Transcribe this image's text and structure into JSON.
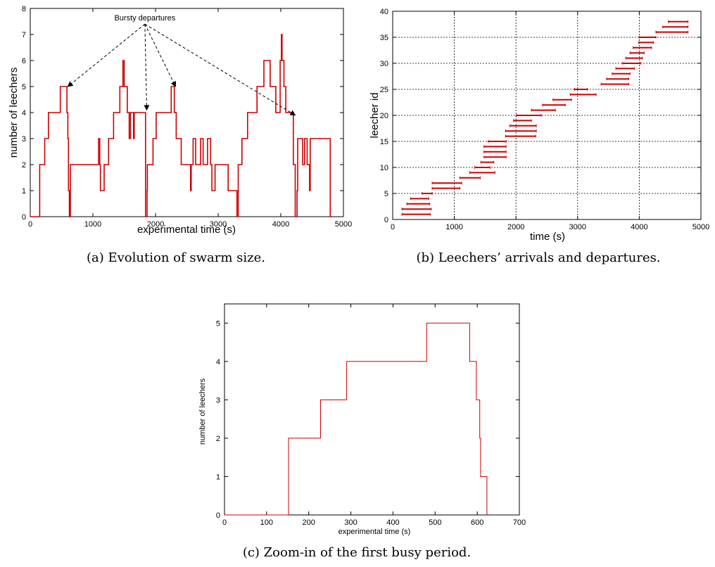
{
  "chart_data": [
    {
      "id": "a",
      "type": "line",
      "caption": "(a) Evolution of swarm size.",
      "xlabel": "experimental time (s)",
      "ylabel": "number of leechers",
      "xlim": [
        0,
        5000
      ],
      "ylim": [
        0,
        8
      ],
      "xticks": [
        0,
        1000,
        2000,
        3000,
        4000,
        5000
      ],
      "yticks": [
        0,
        1,
        2,
        3,
        4,
        5,
        6,
        7,
        8
      ],
      "grid": false,
      "color": "#cc0000",
      "annotation": {
        "text": "Bursty departures",
        "anchor": [
          1830,
          7.4
        ],
        "targets": [
          [
            600,
            5
          ],
          [
            1860,
            4.1
          ],
          [
            2320,
            5
          ],
          [
            4230,
            3.9
          ]
        ]
      },
      "series": [
        {
          "points": [
            [
              0,
              0
            ],
            [
              150,
              0
            ],
            [
              150,
              2
            ],
            [
              230,
              2
            ],
            [
              230,
              3
            ],
            [
              290,
              3
            ],
            [
              290,
              4
            ],
            [
              480,
              4
            ],
            [
              480,
              5
            ],
            [
              585,
              5
            ],
            [
              585,
              4
            ],
            [
              600,
              4
            ],
            [
              600,
              3
            ],
            [
              610,
              3
            ],
            [
              610,
              1
            ],
            [
              625,
              1
            ],
            [
              625,
              0
            ],
            [
              640,
              0
            ],
            [
              640,
              2
            ],
            [
              1090,
              2
            ],
            [
              1090,
              3
            ],
            [
              1110,
              3
            ],
            [
              1110,
              2
            ],
            [
              1120,
              2
            ],
            [
              1120,
              1
            ],
            [
              1180,
              1
            ],
            [
              1180,
              2
            ],
            [
              1250,
              2
            ],
            [
              1250,
              3
            ],
            [
              1330,
              3
            ],
            [
              1330,
              4
            ],
            [
              1430,
              4
            ],
            [
              1430,
              5
            ],
            [
              1480,
              5
            ],
            [
              1480,
              6
            ],
            [
              1500,
              6
            ],
            [
              1500,
              5
            ],
            [
              1550,
              5
            ],
            [
              1550,
              4
            ],
            [
              1580,
              4
            ],
            [
              1580,
              3
            ],
            [
              1600,
              3
            ],
            [
              1600,
              4
            ],
            [
              1650,
              4
            ],
            [
              1650,
              3
            ],
            [
              1660,
              3
            ],
            [
              1660,
              4
            ],
            [
              1840,
              4
            ],
            [
              1840,
              0
            ],
            [
              1865,
              0
            ],
            [
              1865,
              1
            ],
            [
              1870,
              1
            ],
            [
              1870,
              2
            ],
            [
              1960,
              2
            ],
            [
              1960,
              3
            ],
            [
              2010,
              3
            ],
            [
              2010,
              4
            ],
            [
              2250,
              4
            ],
            [
              2250,
              5
            ],
            [
              2300,
              5
            ],
            [
              2300,
              4
            ],
            [
              2330,
              4
            ],
            [
              2330,
              3
            ],
            [
              2410,
              3
            ],
            [
              2410,
              2
            ],
            [
              2560,
              2
            ],
            [
              2560,
              1
            ],
            [
              2570,
              1
            ],
            [
              2570,
              2
            ],
            [
              2600,
              2
            ],
            [
              2600,
              3
            ],
            [
              2640,
              3
            ],
            [
              2640,
              2
            ],
            [
              2720,
              2
            ],
            [
              2720,
              3
            ],
            [
              2760,
              3
            ],
            [
              2760,
              2
            ],
            [
              2830,
              2
            ],
            [
              2830,
              3
            ],
            [
              2880,
              3
            ],
            [
              2880,
              2
            ],
            [
              2900,
              2
            ],
            [
              2900,
              1
            ],
            [
              2950,
              1
            ],
            [
              2950,
              2
            ],
            [
              3160,
              2
            ],
            [
              3160,
              1
            ],
            [
              3300,
              1
            ],
            [
              3300,
              0
            ],
            [
              3320,
              0
            ],
            [
              3320,
              2
            ],
            [
              3380,
              2
            ],
            [
              3380,
              3
            ],
            [
              3470,
              3
            ],
            [
              3470,
              4
            ],
            [
              3620,
              4
            ],
            [
              3620,
              5
            ],
            [
              3730,
              5
            ],
            [
              3730,
              6
            ],
            [
              3830,
              6
            ],
            [
              3830,
              5
            ],
            [
              3920,
              5
            ],
            [
              3920,
              4
            ],
            [
              3990,
              4
            ],
            [
              3990,
              6
            ],
            [
              4010,
              6
            ],
            [
              4010,
              7
            ],
            [
              4020,
              7
            ],
            [
              4020,
              6
            ],
            [
              4050,
              6
            ],
            [
              4050,
              5
            ],
            [
              4080,
              5
            ],
            [
              4080,
              4
            ],
            [
              4200,
              4
            ],
            [
              4200,
              2
            ],
            [
              4230,
              2
            ],
            [
              4230,
              0
            ],
            [
              4260,
              0
            ],
            [
              4260,
              1
            ],
            [
              4270,
              1
            ],
            [
              4270,
              3
            ],
            [
              4350,
              3
            ],
            [
              4350,
              2
            ],
            [
              4380,
              2
            ],
            [
              4380,
              3
            ],
            [
              4420,
              3
            ],
            [
              4420,
              2
            ],
            [
              4460,
              2
            ],
            [
              4460,
              1
            ],
            [
              4470,
              1
            ],
            [
              4470,
              3
            ],
            [
              4790,
              3
            ],
            [
              4790,
              0
            ],
            [
              4820,
              0
            ]
          ]
        }
      ]
    },
    {
      "id": "b",
      "type": "scatter",
      "caption": "(b) Leechers’ arrivals and departures.",
      "xlabel": "time (s)",
      "ylabel": "leecher id",
      "xlim": [
        0,
        5000
      ],
      "ylim": [
        0,
        40
      ],
      "xticks": [
        0,
        1000,
        2000,
        3000,
        4000,
        5000
      ],
      "yticks": [
        0,
        5,
        10,
        15,
        20,
        25,
        30,
        35,
        40
      ],
      "grid": true,
      "color": "#cc0000",
      "intervals": [
        {
          "id": 1,
          "start": 150,
          "end": 610
        },
        {
          "id": 2,
          "start": 150,
          "end": 625
        },
        {
          "id": 3,
          "start": 230,
          "end": 600
        },
        {
          "id": 4,
          "start": 290,
          "end": 585
        },
        {
          "id": 5,
          "start": 480,
          "end": 640
        },
        {
          "id": 6,
          "start": 640,
          "end": 1090
        },
        {
          "id": 7,
          "start": 640,
          "end": 1120
        },
        {
          "id": 8,
          "start": 1090,
          "end": 1420
        },
        {
          "id": 9,
          "start": 1250,
          "end": 1660
        },
        {
          "id": 10,
          "start": 1330,
          "end": 1580
        },
        {
          "id": 11,
          "start": 1430,
          "end": 1640
        },
        {
          "id": 12,
          "start": 1480,
          "end": 1840
        },
        {
          "id": 13,
          "start": 1480,
          "end": 1840
        },
        {
          "id": 14,
          "start": 1480,
          "end": 1840
        },
        {
          "id": 15,
          "start": 1550,
          "end": 1840
        },
        {
          "id": 16,
          "start": 1830,
          "end": 2320
        },
        {
          "id": 17,
          "start": 1830,
          "end": 2330
        },
        {
          "id": 18,
          "start": 1900,
          "end": 2330
        },
        {
          "id": 19,
          "start": 1960,
          "end": 2250
        },
        {
          "id": 20,
          "start": 2010,
          "end": 2410
        },
        {
          "id": 21,
          "start": 2250,
          "end": 2640
        },
        {
          "id": 22,
          "start": 2430,
          "end": 2800
        },
        {
          "id": 23,
          "start": 2600,
          "end": 2900
        },
        {
          "id": 24,
          "start": 2880,
          "end": 3300
        },
        {
          "id": 25,
          "start": 2950,
          "end": 3160
        },
        {
          "id": 26,
          "start": 3380,
          "end": 3830
        },
        {
          "id": 27,
          "start": 3470,
          "end": 3830
        },
        {
          "id": 28,
          "start": 3560,
          "end": 3850
        },
        {
          "id": 29,
          "start": 3620,
          "end": 3920
        },
        {
          "id": 30,
          "start": 3730,
          "end": 4020
        },
        {
          "id": 31,
          "start": 3780,
          "end": 4050
        },
        {
          "id": 32,
          "start": 3850,
          "end": 4080
        },
        {
          "id": 33,
          "start": 3900,
          "end": 4200
        },
        {
          "id": 34,
          "start": 3990,
          "end": 4230
        },
        {
          "id": 35,
          "start": 4000,
          "end": 4270
        },
        {
          "id": 36,
          "start": 4270,
          "end": 4790
        },
        {
          "id": 37,
          "start": 4380,
          "end": 4790
        },
        {
          "id": 38,
          "start": 4470,
          "end": 4790
        }
      ]
    },
    {
      "id": "c",
      "type": "line",
      "caption": "(c) Zoom-in of the first busy period.",
      "xlabel": "experimental time (s)",
      "ylabel": "number of leechers",
      "xlim": [
        0,
        700
      ],
      "ylim": [
        0,
        5.5
      ],
      "xticks": [
        0,
        100,
        200,
        300,
        400,
        500,
        600,
        700
      ],
      "yticks": [
        0,
        1,
        2,
        3,
        4,
        5
      ],
      "grid": false,
      "color": "#cc0000",
      "series": [
        {
          "points": [
            [
              0,
              0
            ],
            [
              152,
              0
            ],
            [
              152,
              2
            ],
            [
              228,
              2
            ],
            [
              228,
              3
            ],
            [
              290,
              3
            ],
            [
              290,
              4
            ],
            [
              480,
              4
            ],
            [
              480,
              5
            ],
            [
              582,
              5
            ],
            [
              582,
              4
            ],
            [
              598,
              4
            ],
            [
              598,
              3
            ],
            [
              606,
              3
            ],
            [
              606,
              2
            ],
            [
              608,
              2
            ],
            [
              608,
              1
            ],
            [
              623,
              1
            ],
            [
              623,
              0
            ]
          ]
        }
      ]
    }
  ]
}
